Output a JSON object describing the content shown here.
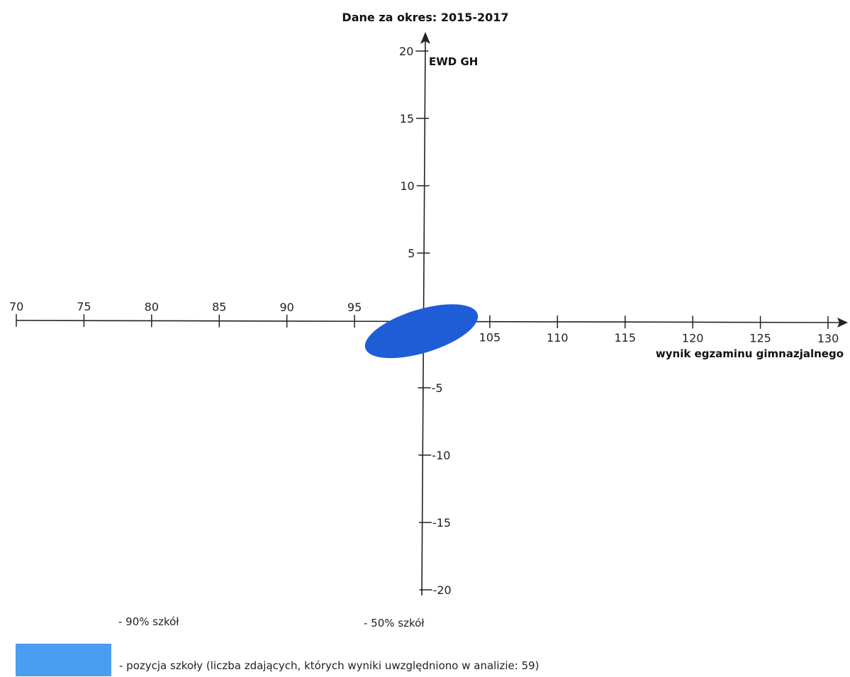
{
  "chart_data": {
    "type": "scatter",
    "title": "Dane za okres: 2015-2017",
    "xlabel": "wynik egzaminu gimnazjalnego",
    "ylabel": "EWD GH",
    "xlim": [
      70,
      130
    ],
    "ylim": [
      -20,
      20
    ],
    "x_ticks": [
      70,
      75,
      80,
      85,
      90,
      95,
      105,
      110,
      115,
      120,
      125,
      130
    ],
    "y_ticks_positive": [
      20,
      15,
      10,
      5
    ],
    "y_ticks_negative": [
      -5,
      -10,
      -15,
      -20
    ],
    "x_tick_labels": [
      "70",
      "75",
      "80",
      "85",
      "90",
      "95",
      "105",
      "110",
      "115",
      "120",
      "125",
      "130"
    ],
    "y_tick_labels": [
      "20",
      "15",
      "10",
      "5",
      "-5",
      "-10",
      "-15",
      "-20"
    ],
    "school_position": {
      "center_x": 100,
      "center_y": -0.8,
      "semi_major": 9.2,
      "semi_minor": 3.4,
      "angle_deg": 17,
      "color": "#1f5dd6"
    },
    "grid": false,
    "legend": [
      {
        "label": "- 90% szkół",
        "color": ""
      },
      {
        "label": "- 50% szkół",
        "color": ""
      },
      {
        "label": "- pozycja szkoły (liczba zdających, których wyniki uwzględniono w analizie: 59)",
        "color": "#4a9df0"
      }
    ]
  }
}
